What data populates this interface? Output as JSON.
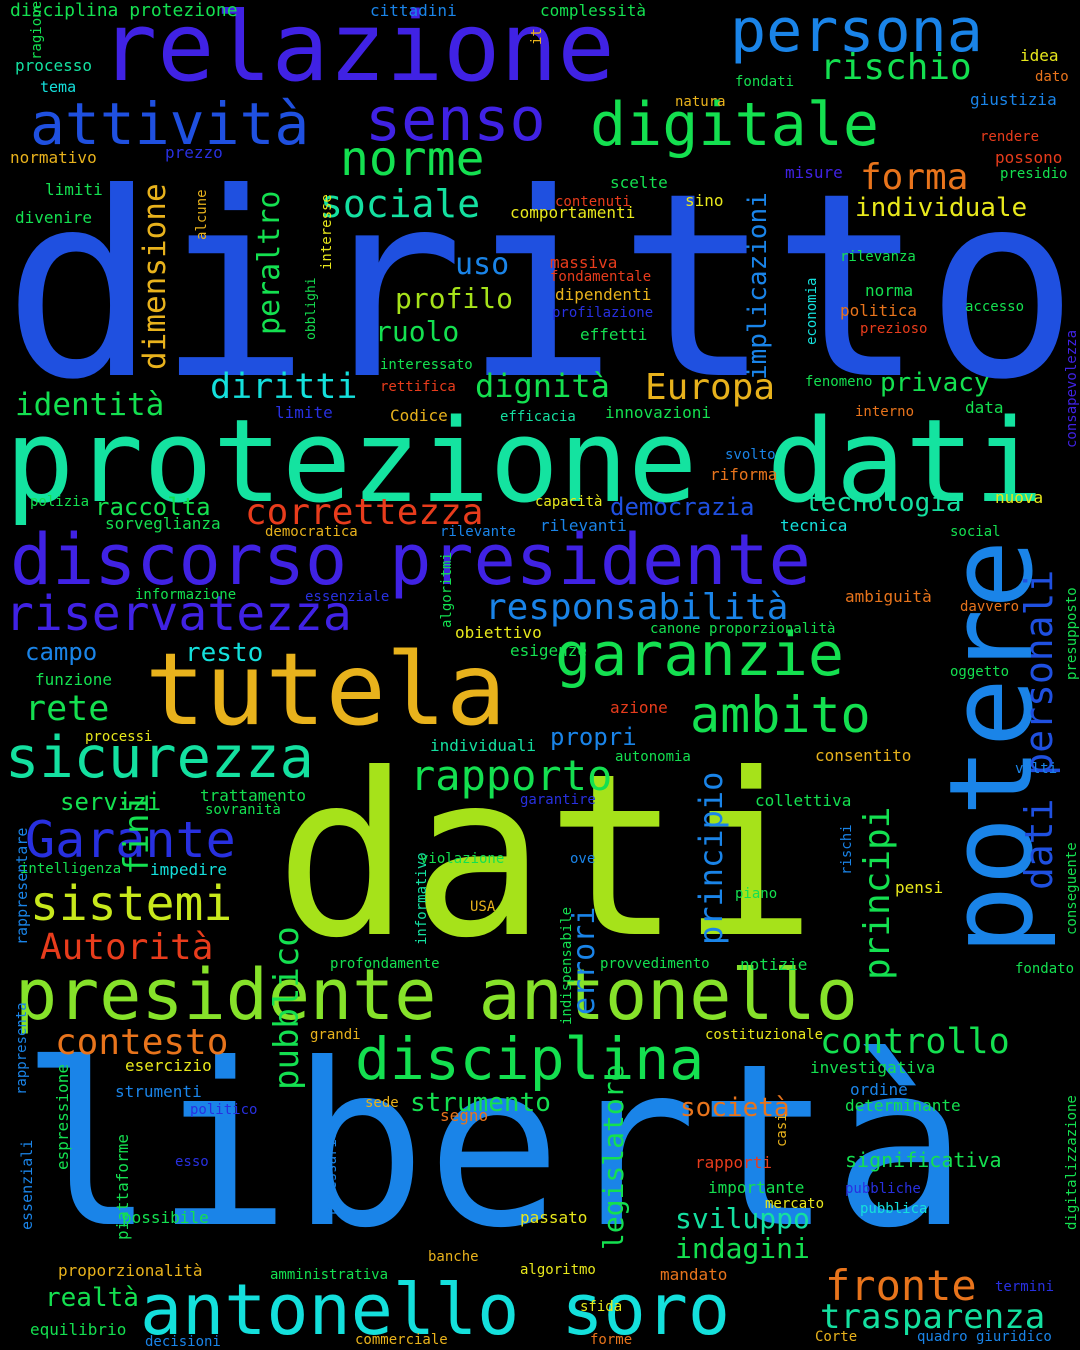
{
  "words": [
    {
      "text": "diritto",
      "color": "#1f50e0"
    },
    {
      "text": "dati",
      "color": "#a6e21a"
    },
    {
      "text": "libertà",
      "color": "#1a84e8"
    },
    {
      "text": "protezione dati",
      "color": "#14e3a0"
    },
    {
      "text": "relazione",
      "color": "#4022e4"
    },
    {
      "text": "tutela",
      "color": "#e8b21c"
    },
    {
      "text": "presidente antonello",
      "color": "#86e22a"
    },
    {
      "text": "potere",
      "color": "#1a84e8"
    },
    {
      "text": "antonello soro",
      "color": "#14e0dc"
    },
    {
      "text": "discorso presidente",
      "color": "#4022e4"
    },
    {
      "text": "persona",
      "color": "#1a84e8"
    },
    {
      "text": "digitale",
      "color": "#14e050"
    },
    {
      "text": "garanzie",
      "color": "#14e050"
    },
    {
      "text": "senso",
      "color": "#4022e4"
    },
    {
      "text": "attività",
      "color": "#1f50e0"
    },
    {
      "text": "disciplina",
      "color": "#14e050"
    },
    {
      "text": "sicurezza",
      "color": "#14e0a0"
    },
    {
      "text": "riservatezza",
      "color": "#4022e4"
    },
    {
      "text": "ambito",
      "color": "#14e050"
    },
    {
      "text": "norme",
      "color": "#14e050"
    },
    {
      "text": "Garante",
      "color": "#2830e0"
    },
    {
      "text": "sistemi",
      "color": "#c8e81c"
    },
    {
      "text": "responsabilità",
      "color": "#1a84e8"
    },
    {
      "text": "rapporto",
      "color": "#14e050"
    },
    {
      "text": "dati personali",
      "color": "#1f50e0"
    },
    {
      "text": "principi",
      "color": "#14e050"
    },
    {
      "text": "fronte",
      "color": "#e8741c"
    },
    {
      "text": "controllo",
      "color": "#14e050"
    },
    {
      "text": "trasparenza",
      "color": "#14e0a0"
    },
    {
      "text": "contesto",
      "color": "#e8741c"
    },
    {
      "text": "Autorità",
      "color": "#e83c1c"
    },
    {
      "text": "correttezza",
      "color": "#e83c1c"
    },
    {
      "text": "rischio",
      "color": "#14e050"
    },
    {
      "text": "sociale",
      "color": "#14e0a0"
    },
    {
      "text": "diritti",
      "color": "#14e0dc"
    },
    {
      "text": "pubblico",
      "color": "#14e050"
    },
    {
      "text": "forma",
      "color": "#e8741c"
    },
    {
      "text": "Europa",
      "color": "#e8b21c"
    },
    {
      "text": "dimensione",
      "color": "#e8b21c"
    },
    {
      "text": "dignità",
      "color": "#14e050"
    },
    {
      "text": "principio",
      "color": "#1a84e8"
    },
    {
      "text": "identità",
      "color": "#14e050"
    },
    {
      "text": "peraltro",
      "color": "#14e050"
    },
    {
      "text": "errori",
      "color": "#1a84e8"
    },
    {
      "text": "implicazioni",
      "color": "#1a84e8"
    },
    {
      "text": "individuale",
      "color": "#e8e81c"
    },
    {
      "text": "profilo",
      "color": "#a6e21a"
    },
    {
      "text": "uso",
      "color": "#1a84e8"
    },
    {
      "text": "rete",
      "color": "#14e050"
    },
    {
      "text": "fini",
      "color": "#14e050"
    },
    {
      "text": "legislatore",
      "color": "#14e050"
    },
    {
      "text": "sviluppo",
      "color": "#14e0a0"
    },
    {
      "text": "indagini",
      "color": "#14e050"
    },
    {
      "text": "società",
      "color": "#e8741c"
    },
    {
      "text": "strumento",
      "color": "#14e050"
    },
    {
      "text": "ruolo",
      "color": "#14e050"
    },
    {
      "text": "realtà",
      "color": "#14e050"
    },
    {
      "text": "privacy",
      "color": "#14e050"
    },
    {
      "text": "tecnologia",
      "color": "#14e0a0"
    },
    {
      "text": "democrazia",
      "color": "#1f50e0"
    },
    {
      "text": "raccolta",
      "color": "#14e050"
    },
    {
      "text": "resto",
      "color": "#14e0dc"
    },
    {
      "text": "campo",
      "color": "#1a84e8"
    },
    {
      "text": "propri",
      "color": "#1a84e8"
    },
    {
      "text": "servizi",
      "color": "#14e050"
    },
    {
      "text": "significativa",
      "color": "#14e050"
    },
    {
      "text": "disciplina protezione",
      "color": "#14e050"
    },
    {
      "text": "cittadini",
      "color": "#1a84e8"
    },
    {
      "text": "complessità",
      "color": "#14e050"
    },
    {
      "text": "ragione",
      "color": "#14e050"
    },
    {
      "text": "it",
      "color": "#e8b21c"
    },
    {
      "text": "processo",
      "color": "#14e0a0"
    },
    {
      "text": "tema",
      "color": "#14e0dc"
    },
    {
      "text": "fondati",
      "color": "#14e050"
    },
    {
      "text": "idea",
      "color": "#e8e81c"
    },
    {
      "text": "dato",
      "color": "#e8741c"
    },
    {
      "text": "natura",
      "color": "#e8b21c"
    },
    {
      "text": "giustizia",
      "color": "#1a84e8"
    },
    {
      "text": "rendere",
      "color": "#e83c1c"
    },
    {
      "text": "normativo",
      "color": "#e8b21c"
    },
    {
      "text": "prezzo",
      "color": "#2830e0"
    },
    {
      "text": "possono",
      "color": "#e83c1c"
    },
    {
      "text": "presidio",
      "color": "#14e050"
    },
    {
      "text": "misure",
      "color": "#4022e4"
    },
    {
      "text": "limiti",
      "color": "#14e050"
    },
    {
      "text": "alcune",
      "color": "#e8b21c"
    },
    {
      "text": "interesse",
      "color": "#e8e81c"
    },
    {
      "text": "contenuti",
      "color": "#e83c1c"
    },
    {
      "text": "scelte",
      "color": "#14e050"
    },
    {
      "text": "sino",
      "color": "#e8e81c"
    },
    {
      "text": "divenire",
      "color": "#14e050"
    },
    {
      "text": "comportamenti",
      "color": "#e8e81c"
    },
    {
      "text": "obblighi",
      "color": "#14e050"
    },
    {
      "text": "massiva",
      "color": "#e83c1c"
    },
    {
      "text": "fondamentale",
      "color": "#e83c1c"
    },
    {
      "text": "rilevanza",
      "color": "#14e050"
    },
    {
      "text": "economia",
      "color": "#14e0dc"
    },
    {
      "text": "dipendenti",
      "color": "#e8b21c"
    },
    {
      "text": "norma",
      "color": "#14e050"
    },
    {
      "text": "profilazione",
      "color": "#2830e0"
    },
    {
      "text": "politica",
      "color": "#e8741c"
    },
    {
      "text": "accesso",
      "color": "#14e050"
    },
    {
      "text": "prezioso",
      "color": "#e83c1c"
    },
    {
      "text": "effetti",
      "color": "#14e050"
    },
    {
      "text": "interessato",
      "color": "#14e050"
    },
    {
      "text": "rettifica",
      "color": "#e83c1c"
    },
    {
      "text": "fenomeno",
      "color": "#14e050"
    },
    {
      "text": "consapevolezza",
      "color": "#4022e4"
    },
    {
      "text": "limite",
      "color": "#2830e0"
    },
    {
      "text": "Codice",
      "color": "#e8b21c"
    },
    {
      "text": "efficacia",
      "color": "#14e0a0"
    },
    {
      "text": "innovazioni",
      "color": "#14e050"
    },
    {
      "text": "interno",
      "color": "#e8741c"
    },
    {
      "text": "data",
      "color": "#14e050"
    },
    {
      "text": "svolto",
      "color": "#1a84e8"
    },
    {
      "text": "riforma",
      "color": "#e8741c"
    },
    {
      "text": "polizia",
      "color": "#14e050"
    },
    {
      "text": "capacità",
      "color": "#e8e81c"
    },
    {
      "text": "nuova",
      "color": "#e8e81c"
    },
    {
      "text": "sorveglianza",
      "color": "#14e050"
    },
    {
      "text": "rilevanti",
      "color": "#1a84e8"
    },
    {
      "text": "tecnica",
      "color": "#14e0dc"
    },
    {
      "text": "democratica",
      "color": "#e8b21c"
    },
    {
      "text": "algoritmi",
      "color": "#14e050"
    },
    {
      "text": "rilevante",
      "color": "#1a84e8"
    },
    {
      "text": "social",
      "color": "#14e050"
    },
    {
      "text": "informazione",
      "color": "#14e050"
    },
    {
      "text": "essenziale",
      "color": "#2830e0"
    },
    {
      "text": "ambiguità",
      "color": "#e8741c"
    },
    {
      "text": "davvero",
      "color": "#e8741c"
    },
    {
      "text": "presupposto",
      "color": "#14e050"
    },
    {
      "text": "canone proporzionalità",
      "color": "#14e050"
    },
    {
      "text": "obiettivo",
      "color": "#e8e81c"
    },
    {
      "text": "esigenze",
      "color": "#14e050"
    },
    {
      "text": "oggetto",
      "color": "#14e050"
    },
    {
      "text": "funzione",
      "color": "#14e050"
    },
    {
      "text": "azione",
      "color": "#e83c1c"
    },
    {
      "text": "processi",
      "color": "#e8e81c"
    },
    {
      "text": "individuali",
      "color": "#14e0a0"
    },
    {
      "text": "autonomia",
      "color": "#14e050"
    },
    {
      "text": "consentito",
      "color": "#e8b21c"
    },
    {
      "text": "volti",
      "color": "#1a84e8"
    },
    {
      "text": "trattamento",
      "color": "#14e050"
    },
    {
      "text": "sovranità",
      "color": "#14e050"
    },
    {
      "text": "garantire",
      "color": "#2830e0"
    },
    {
      "text": "collettiva",
      "color": "#14e050"
    },
    {
      "text": "rischi",
      "color": "#1a84e8"
    },
    {
      "text": "rappresentare",
      "color": "#1a84e8"
    },
    {
      "text": "intelligenza",
      "color": "#14e050"
    },
    {
      "text": "impedire",
      "color": "#14e0dc"
    },
    {
      "text": "informativo",
      "color": "#14e0a0"
    },
    {
      "text": "violazione",
      "color": "#14e050"
    },
    {
      "text": "ove",
      "color": "#1a84e8"
    },
    {
      "text": "pensi",
      "color": "#e8e81c"
    },
    {
      "text": "conseguente",
      "color": "#14e050"
    },
    {
      "text": "USA",
      "color": "#e8b21c"
    },
    {
      "text": "indispensabile",
      "color": "#14e050"
    },
    {
      "text": "piano",
      "color": "#14e050"
    },
    {
      "text": "profondamente",
      "color": "#14e050"
    },
    {
      "text": "provvedimento",
      "color": "#14e050"
    },
    {
      "text": "notizie",
      "color": "#14e050"
    },
    {
      "text": "fondato",
      "color": "#14e050"
    },
    {
      "text": "rappresenta",
      "color": "#1a84e8"
    },
    {
      "text": "grandi",
      "color": "#e8b21c"
    },
    {
      "text": "costituzionale",
      "color": "#e8e81c"
    },
    {
      "text": "esercizio",
      "color": "#e8e81c"
    },
    {
      "text": "investigativa",
      "color": "#14e050"
    },
    {
      "text": "strumenti",
      "color": "#1a84e8"
    },
    {
      "text": "ordine",
      "color": "#1a84e8"
    },
    {
      "text": "sede",
      "color": "#e8b21c"
    },
    {
      "text": "segno",
      "color": "#e8741c"
    },
    {
      "text": "determinante",
      "color": "#14e050"
    },
    {
      "text": "politico",
      "color": "#2830e0"
    },
    {
      "text": "espressione",
      "color": "#14e050"
    },
    {
      "text": "essenziali",
      "color": "#1a84e8"
    },
    {
      "text": "piattaforme",
      "color": "#14e050"
    },
    {
      "text": "necessario",
      "color": "#1a84e8"
    },
    {
      "text": "casi",
      "color": "#e8b21c"
    },
    {
      "text": "digitalizzazione",
      "color": "#14e050"
    },
    {
      "text": "esso",
      "color": "#2830e0"
    },
    {
      "text": "rapporti",
      "color": "#e83c1c"
    },
    {
      "text": "importante",
      "color": "#14e050"
    },
    {
      "text": "pubbliche",
      "color": "#2830e0"
    },
    {
      "text": "mercato",
      "color": "#e8e81c"
    },
    {
      "text": "pubblica",
      "color": "#14e0dc"
    },
    {
      "text": "possibile",
      "color": "#14e050"
    },
    {
      "text": "passato",
      "color": "#e8e81c"
    },
    {
      "text": "banche",
      "color": "#e8b21c"
    },
    {
      "text": "proporzionalità",
      "color": "#e8b21c"
    },
    {
      "text": "amministrativa",
      "color": "#14e050"
    },
    {
      "text": "algoritmo",
      "color": "#e8e81c"
    },
    {
      "text": "mandato",
      "color": "#e8741c"
    },
    {
      "text": "termini",
      "color": "#2830e0"
    },
    {
      "text": "sfida",
      "color": "#e8e81c"
    },
    {
      "text": "equilibrio",
      "color": "#14e050"
    },
    {
      "text": "decisioni",
      "color": "#1a84e8"
    },
    {
      "text": "commerciale",
      "color": "#e8b21c"
    },
    {
      "text": "forme",
      "color": "#e8741c"
    },
    {
      "text": "Corte",
      "color": "#e8b21c"
    },
    {
      "text": "quadro giuridico",
      "color": "#1a84e8"
    }
  ]
}
